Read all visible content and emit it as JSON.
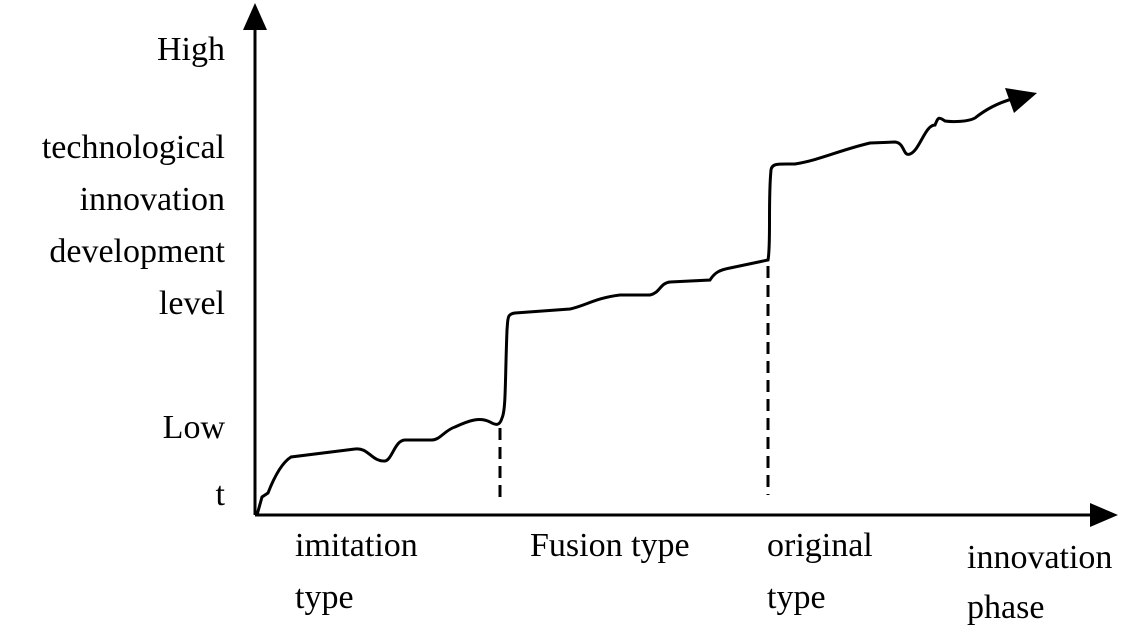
{
  "y_axis": {
    "high": "High",
    "title_lines": [
      "technological",
      "innovation",
      "development",
      "level"
    ],
    "low": "Low",
    "origin": "t"
  },
  "x_axis": {
    "phases": [
      [
        "imitation",
        "type"
      ],
      [
        "Fusion type"
      ],
      [
        "original",
        "type"
      ]
    ],
    "title_lines": [
      "innovation",
      "phase"
    ]
  }
}
